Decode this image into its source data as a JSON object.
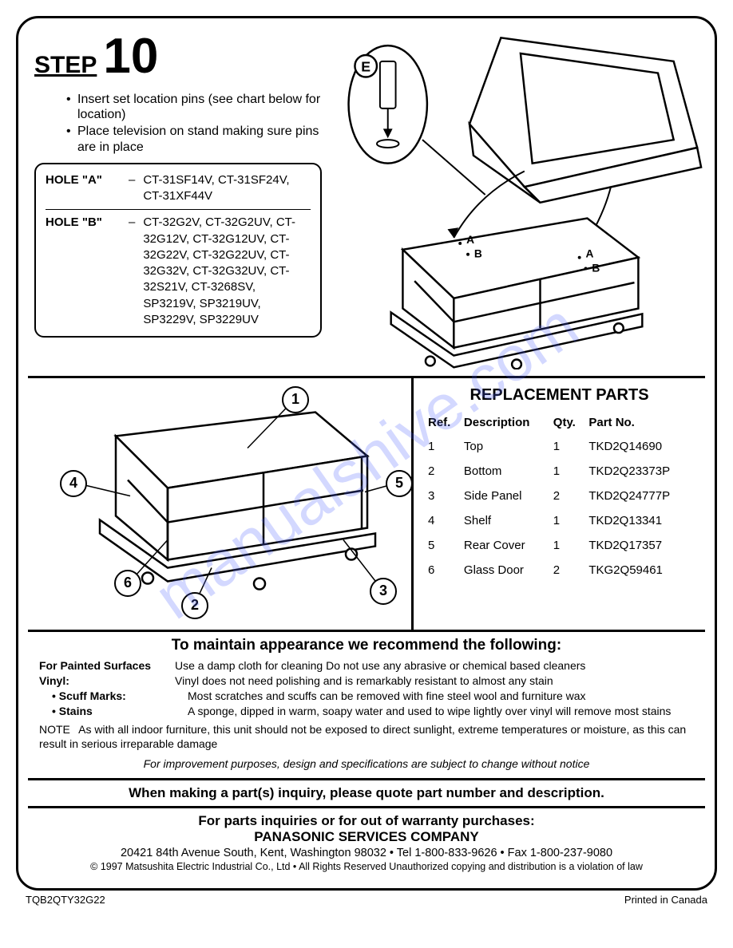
{
  "step": {
    "label": "STEP",
    "number": "10",
    "instructions": [
      "Insert set location pins (see chart below for location)",
      "Place television on stand making sure pins are in place"
    ]
  },
  "holes": {
    "a_label": "HOLE \"A\"",
    "a_models": "CT-31SF14V, CT-31SF24V, CT-31XF44V",
    "b_label": "HOLE \"B\"",
    "b_models": "CT-32G2V, CT-32G2UV, CT-32G12V, CT-32G12UV, CT-32G22V, CT-32G22UV, CT-32G32V, CT-32G32UV, CT-32S21V, CT-3268SV, SP3219V, SP3219UV, SP3229V, SP3229UV"
  },
  "pin_label": "E",
  "stand_labels": {
    "a1": "A",
    "b1": "B",
    "a2": "A",
    "b2": "B"
  },
  "replacement": {
    "title": "REPLACEMENT PARTS",
    "headers": {
      "ref": "Ref.",
      "desc": "Description",
      "qty": "Qty.",
      "part": "Part No."
    },
    "rows": [
      {
        "ref": "1",
        "desc": "Top",
        "qty": "1",
        "part": "TKD2Q14690"
      },
      {
        "ref": "2",
        "desc": "Bottom",
        "qty": "1",
        "part": "TKD2Q23373P"
      },
      {
        "ref": "3",
        "desc": "Side Panel",
        "qty": "2",
        "part": "TKD2Q24777P"
      },
      {
        "ref": "4",
        "desc": "Shelf",
        "qty": "1",
        "part": "TKD2Q13341"
      },
      {
        "ref": "5",
        "desc": "Rear Cover",
        "qty": "1",
        "part": "TKD2Q17357"
      },
      {
        "ref": "6",
        "desc": "Glass Door",
        "qty": "2",
        "part": "TKG2Q59461"
      }
    ]
  },
  "callouts": [
    "1",
    "2",
    "3",
    "4",
    "5",
    "6"
  ],
  "maintenance": {
    "title": "To maintain appearance we recommend the following:",
    "painted_label": "For Painted Surfaces",
    "painted_text": "Use a damp cloth for cleaning  Do not use any abrasive or chemical based cleaners",
    "vinyl_label": "Vinyl:",
    "vinyl_text": "Vinyl does not need polishing and is remarkably resistant to almost any stain",
    "scuff_label": "• Scuff Marks:",
    "scuff_text": "Most scratches and scuffs can be removed with fine steel wool and furniture wax",
    "stains_label": "• Stains",
    "stains_text": "A sponge, dipped in warm, soapy water and used to wipe lightly over vinyl will remove most stains",
    "note_label": "NOTE",
    "note_text": "As with all indoor furniture, this unit should not be exposed to direct sunlight, extreme temperatures or moisture, as this can result in serious irreparable damage",
    "italic": "For improvement purposes, design and specifications are subject to change without notice"
  },
  "inquiry": "When making a part(s) inquiry, please quote part number and description.",
  "contact": {
    "line1": "For parts inquiries or for out of warranty purchases:",
    "company": "PANASONIC SERVICES COMPANY",
    "address": "20421 84th Avenue South, Kent, Washington 98032  •  Tel  1-800-833-9626  •  Fax  1-800-237-9080",
    "copyright": "© 1997 Matsushita Electric Industrial Co., Ltd  •  All Rights Reserved  Unauthorized copying and distribution is a violation of law"
  },
  "footer": {
    "left": "TQB2QTY32G22",
    "right": "Printed in Canada"
  },
  "watermark": "manualshive.com"
}
